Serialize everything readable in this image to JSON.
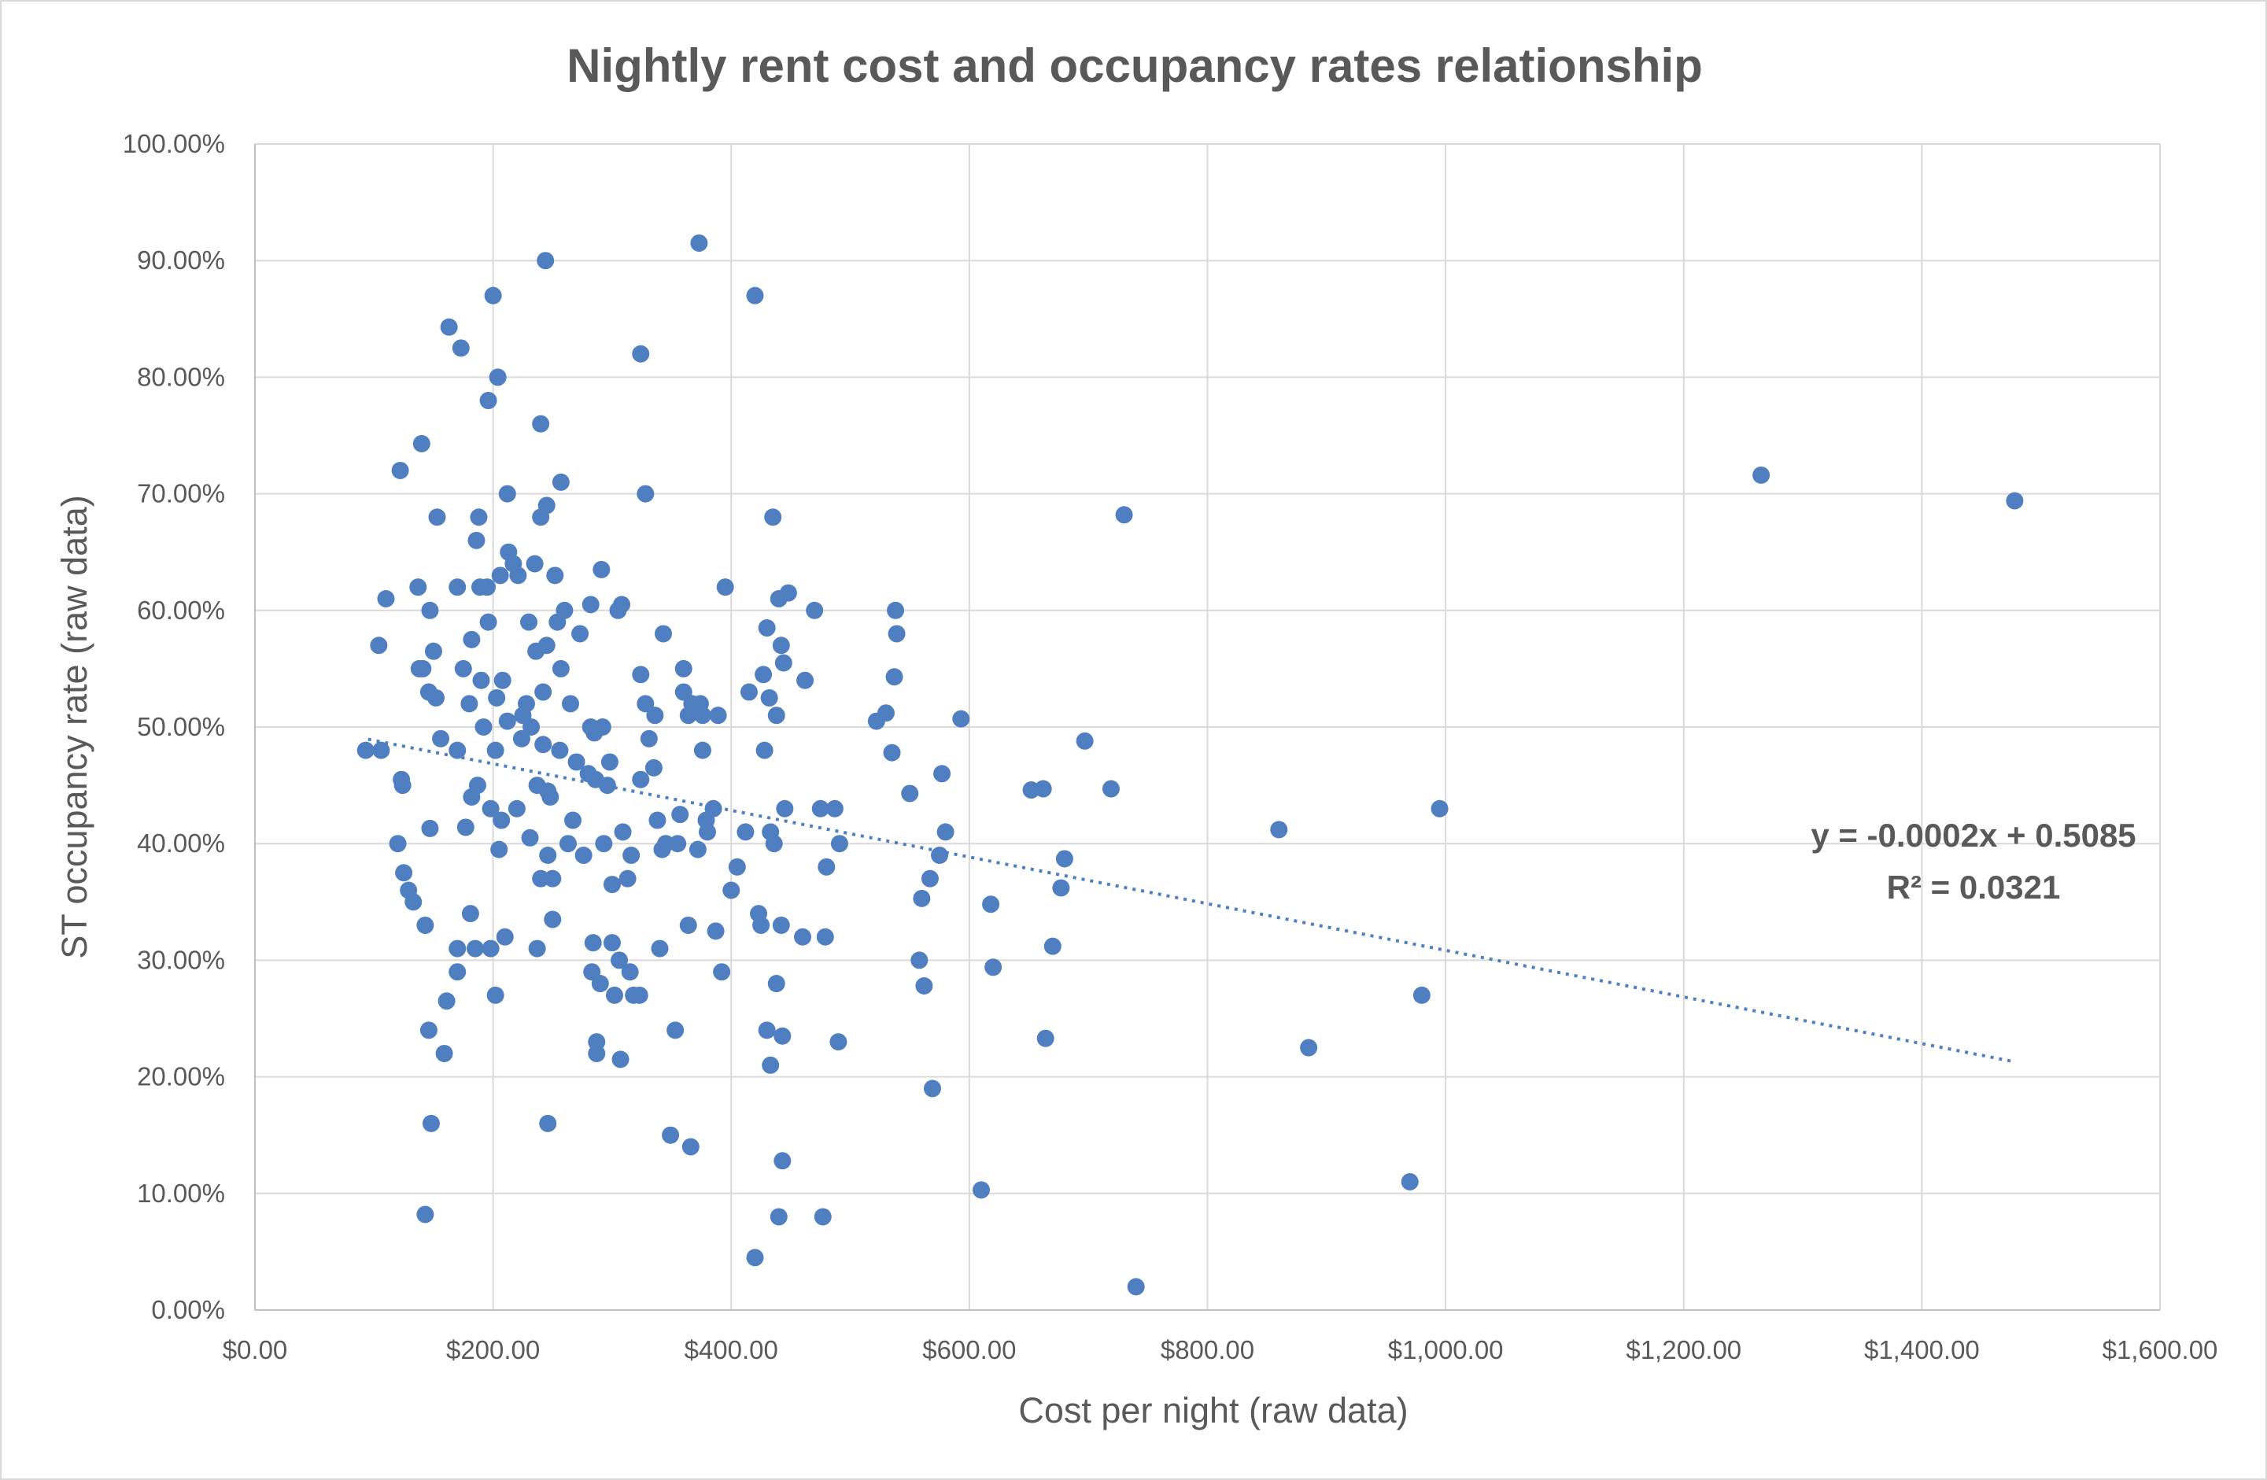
{
  "chart_data": {
    "type": "scatter",
    "title": "Nightly rent cost and occupancy rates relationship",
    "xlabel": "Cost per night (raw data)",
    "ylabel": "ST occupancy rate  (raw data)",
    "xlim": [
      0,
      1600
    ],
    "ylim": [
      0,
      1
    ],
    "x_ticks": [
      0,
      200,
      400,
      600,
      800,
      1000,
      1200,
      1400,
      1600
    ],
    "x_tick_labels": [
      "$0.00",
      "$200.00",
      "$400.00",
      "$600.00",
      "$800.00",
      "$1,000.00",
      "$1,200.00",
      "$1,400.00",
      "$1,600.00"
    ],
    "y_ticks": [
      0,
      0.1,
      0.2,
      0.3,
      0.4,
      0.5,
      0.6,
      0.7,
      0.8,
      0.9,
      1.0
    ],
    "y_tick_labels": [
      "0.00%",
      "10.00%",
      "20.00%",
      "30.00%",
      "40.00%",
      "50.00%",
      "60.00%",
      "70.00%",
      "80.00%",
      "90.00%",
      "100.00%"
    ],
    "grid": true,
    "legend": "none",
    "marker_color": "#4f7fc1",
    "trendline": {
      "type": "linear",
      "slope": -0.0002,
      "intercept": 0.5085,
      "x_range": [
        95,
        1478
      ],
      "equation": "y = -0.0002x + 0.5085",
      "r_squared": "R² = 0.0321"
    },
    "points": [
      [
        93,
        0.48
      ],
      [
        104,
        0.57
      ],
      [
        106,
        0.48
      ],
      [
        110,
        0.61
      ],
      [
        120,
        0.4
      ],
      [
        122,
        0.72
      ],
      [
        123,
        0.455
      ],
      [
        124,
        0.45
      ],
      [
        125,
        0.375
      ],
      [
        129,
        0.36
      ],
      [
        133,
        0.35
      ],
      [
        137,
        0.62
      ],
      [
        138,
        0.55
      ],
      [
        140,
        0.743
      ],
      [
        141,
        0.55
      ],
      [
        143,
        0.33
      ],
      [
        143,
        0.082
      ],
      [
        146,
        0.24
      ],
      [
        146,
        0.53
      ],
      [
        147,
        0.413
      ],
      [
        147,
        0.6
      ],
      [
        148,
        0.16
      ],
      [
        150,
        0.565
      ],
      [
        152,
        0.525
      ],
      [
        153,
        0.68
      ],
      [
        156,
        0.49
      ],
      [
        159,
        0.22
      ],
      [
        161,
        0.265
      ],
      [
        163,
        0.843
      ],
      [
        170,
        0.62
      ],
      [
        170,
        0.48
      ],
      [
        170,
        0.31
      ],
      [
        170,
        0.29
      ],
      [
        173,
        0.825
      ],
      [
        175,
        0.55
      ],
      [
        177,
        0.414
      ],
      [
        180,
        0.52
      ],
      [
        181,
        0.34
      ],
      [
        182,
        0.575
      ],
      [
        182,
        0.44
      ],
      [
        185,
        0.31
      ],
      [
        186,
        0.66
      ],
      [
        187,
        0.45
      ],
      [
        188,
        0.68
      ],
      [
        189,
        0.62
      ],
      [
        190,
        0.54
      ],
      [
        192,
        0.5
      ],
      [
        195,
        0.62
      ],
      [
        196,
        0.59
      ],
      [
        196,
        0.78
      ],
      [
        198,
        0.43
      ],
      [
        198,
        0.31
      ],
      [
        200,
        0.87
      ],
      [
        202,
        0.48
      ],
      [
        202,
        0.27
      ],
      [
        203,
        0.525
      ],
      [
        204,
        0.8
      ],
      [
        205,
        0.395
      ],
      [
        206,
        0.63
      ],
      [
        207,
        0.42
      ],
      [
        208,
        0.54
      ],
      [
        210,
        0.32
      ],
      [
        212,
        0.7
      ],
      [
        212,
        0.505
      ],
      [
        213,
        0.65
      ],
      [
        217,
        0.64
      ],
      [
        220,
        0.43
      ],
      [
        221,
        0.63
      ],
      [
        224,
        0.49
      ],
      [
        225,
        0.51
      ],
      [
        228,
        0.52
      ],
      [
        230,
        0.59
      ],
      [
        231,
        0.405
      ],
      [
        232,
        0.5
      ],
      [
        235,
        0.64
      ],
      [
        236,
        0.565
      ],
      [
        237,
        0.31
      ],
      [
        237,
        0.45
      ],
      [
        240,
        0.37
      ],
      [
        240,
        0.76
      ],
      [
        240,
        0.68
      ],
      [
        242,
        0.53
      ],
      [
        242,
        0.485
      ],
      [
        244,
        0.9
      ],
      [
        245,
        0.69
      ],
      [
        245,
        0.57
      ],
      [
        246,
        0.16
      ],
      [
        246,
        0.39
      ],
      [
        246,
        0.445
      ],
      [
        248,
        0.44
      ],
      [
        250,
        0.37
      ],
      [
        250,
        0.335
      ],
      [
        252,
        0.63
      ],
      [
        254,
        0.59
      ],
      [
        256,
        0.48
      ],
      [
        257,
        0.71
      ],
      [
        257,
        0.55
      ],
      [
        260,
        0.6
      ],
      [
        263,
        0.4
      ],
      [
        265,
        0.52
      ],
      [
        267,
        0.42
      ],
      [
        270,
        0.47
      ],
      [
        273,
        0.58
      ],
      [
        276,
        0.39
      ],
      [
        280,
        0.46
      ],
      [
        282,
        0.605
      ],
      [
        282,
        0.5
      ],
      [
        283,
        0.29
      ],
      [
        284,
        0.315
      ],
      [
        285,
        0.495
      ],
      [
        286,
        0.455
      ],
      [
        287,
        0.23
      ],
      [
        287,
        0.22
      ],
      [
        290,
        0.28
      ],
      [
        291,
        0.635
      ],
      [
        292,
        0.5
      ],
      [
        293,
        0.4
      ],
      [
        296,
        0.45
      ],
      [
        298,
        0.47
      ],
      [
        300,
        0.365
      ],
      [
        300,
        0.315
      ],
      [
        302,
        0.27
      ],
      [
        305,
        0.6
      ],
      [
        306,
        0.3
      ],
      [
        307,
        0.215
      ],
      [
        308,
        0.605
      ],
      [
        309,
        0.41
      ],
      [
        313,
        0.37
      ],
      [
        315,
        0.29
      ],
      [
        316,
        0.39
      ],
      [
        318,
        0.27
      ],
      [
        323,
        0.27
      ],
      [
        324,
        0.82
      ],
      [
        324,
        0.455
      ],
      [
        324,
        0.545
      ],
      [
        328,
        0.52
      ],
      [
        328,
        0.7
      ],
      [
        331,
        0.49
      ],
      [
        335,
        0.465
      ],
      [
        336,
        0.51
      ],
      [
        338,
        0.42
      ],
      [
        340,
        0.31
      ],
      [
        342,
        0.395
      ],
      [
        343,
        0.58
      ],
      [
        345,
        0.4
      ],
      [
        349,
        0.15
      ],
      [
        353,
        0.24
      ],
      [
        355,
        0.4
      ],
      [
        357,
        0.425
      ],
      [
        360,
        0.53
      ],
      [
        360,
        0.55
      ],
      [
        364,
        0.51
      ],
      [
        364,
        0.33
      ],
      [
        366,
        0.14
      ],
      [
        367,
        0.52
      ],
      [
        372,
        0.395
      ],
      [
        373,
        0.915
      ],
      [
        374,
        0.52
      ],
      [
        376,
        0.51
      ],
      [
        376,
        0.48
      ],
      [
        379,
        0.42
      ],
      [
        380,
        0.41
      ],
      [
        385,
        0.43
      ],
      [
        387,
        0.325
      ],
      [
        389,
        0.51
      ],
      [
        392,
        0.29
      ],
      [
        395,
        0.62
      ],
      [
        400,
        0.36
      ],
      [
        405,
        0.38
      ],
      [
        412,
        0.41
      ],
      [
        415,
        0.53
      ],
      [
        420,
        0.87
      ],
      [
        420,
        0.045
      ],
      [
        423,
        0.34
      ],
      [
        425,
        0.33
      ],
      [
        427,
        0.545
      ],
      [
        428,
        0.48
      ],
      [
        430,
        0.585
      ],
      [
        430,
        0.24
      ],
      [
        432,
        0.525
      ],
      [
        433,
        0.21
      ],
      [
        433,
        0.41
      ],
      [
        435,
        0.68
      ],
      [
        436,
        0.4
      ],
      [
        438,
        0.28
      ],
      [
        438,
        0.51
      ],
      [
        440,
        0.08
      ],
      [
        440,
        0.61
      ],
      [
        442,
        0.57
      ],
      [
        442,
        0.33
      ],
      [
        443,
        0.235
      ],
      [
        443,
        0.128
      ],
      [
        444,
        0.555
      ],
      [
        445,
        0.43
      ],
      [
        448,
        0.615
      ],
      [
        460,
        0.32
      ],
      [
        462,
        0.54
      ],
      [
        470,
        0.6
      ],
      [
        475,
        0.43
      ],
      [
        477,
        0.08
      ],
      [
        479,
        0.32
      ],
      [
        480,
        0.38
      ],
      [
        487,
        0.43
      ],
      [
        490,
        0.23
      ],
      [
        491,
        0.4
      ],
      [
        522,
        0.505
      ],
      [
        530,
        0.512
      ],
      [
        535,
        0.478
      ],
      [
        537,
        0.543
      ],
      [
        538,
        0.6
      ],
      [
        539,
        0.58
      ],
      [
        550,
        0.443
      ],
      [
        558,
        0.3
      ],
      [
        560,
        0.353
      ],
      [
        562,
        0.278
      ],
      [
        567,
        0.37
      ],
      [
        569,
        0.19
      ],
      [
        575,
        0.39
      ],
      [
        577,
        0.46
      ],
      [
        580,
        0.41
      ],
      [
        593,
        0.507
      ],
      [
        610,
        0.103
      ],
      [
        618,
        0.348
      ],
      [
        620,
        0.294
      ],
      [
        652,
        0.446
      ],
      [
        662,
        0.447
      ],
      [
        664,
        0.233
      ],
      [
        670,
        0.312
      ],
      [
        677,
        0.362
      ],
      [
        680,
        0.387
      ],
      [
        697,
        0.488
      ],
      [
        719,
        0.447
      ],
      [
        730,
        0.682
      ],
      [
        740,
        0.02
      ],
      [
        860,
        0.412
      ],
      [
        885,
        0.225
      ],
      [
        970,
        0.11
      ],
      [
        980,
        0.27
      ],
      [
        995,
        0.43
      ],
      [
        1265,
        0.716
      ],
      [
        1478,
        0.694
      ]
    ]
  }
}
